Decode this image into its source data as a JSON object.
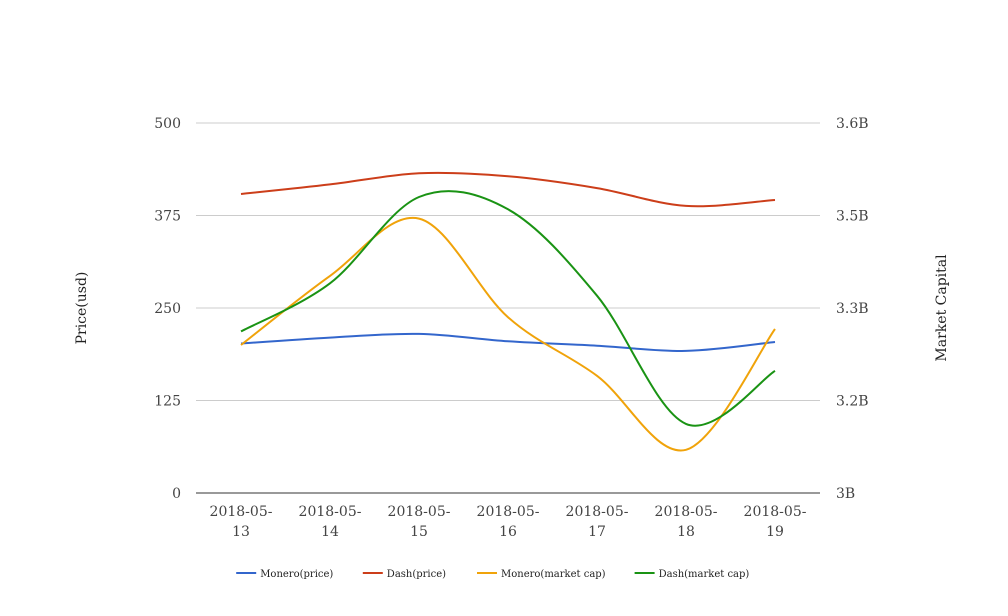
{
  "chart_data": {
    "type": "line",
    "categories": [
      "2018-05-13",
      "2018-05-14",
      "2018-05-15",
      "2018-05-16",
      "2018-05-17",
      "2018-05-18",
      "2018-05-19"
    ],
    "y_left": {
      "label": "Price(usd)",
      "ticks": [
        "500",
        "375",
        "250",
        "125",
        "0"
      ],
      "range": [
        0,
        500
      ]
    },
    "y_right": {
      "label": "Market Capital",
      "ticks": [
        "3.6B",
        "3.5B",
        "3.3B",
        "3.2B",
        "3B"
      ],
      "range": [
        3.0,
        3.6
      ]
    },
    "grid": true,
    "legend_position": "bottom",
    "series": [
      {
        "name": "Monero(price)",
        "color": "#3366cc",
        "axis": "left",
        "values": [
          202,
          210,
          215,
          205,
          199,
          192,
          204
        ]
      },
      {
        "name": "Dash(price)",
        "color": "#cc3e1a",
        "axis": "left",
        "values": [
          404,
          417,
          432,
          428,
          412,
          388,
          396
        ]
      },
      {
        "name": "Monero(market cap)",
        "color": "#f0a30a",
        "axis": "right",
        "values": [
          3.24,
          3.352,
          3.445,
          3.285,
          3.19,
          3.07,
          3.266
        ]
      },
      {
        "name": "Dash(market cap)",
        "color": "#1a9314",
        "axis": "right",
        "values": [
          3.262,
          3.34,
          3.48,
          3.46,
          3.32,
          3.112,
          3.198
        ]
      }
    ]
  }
}
